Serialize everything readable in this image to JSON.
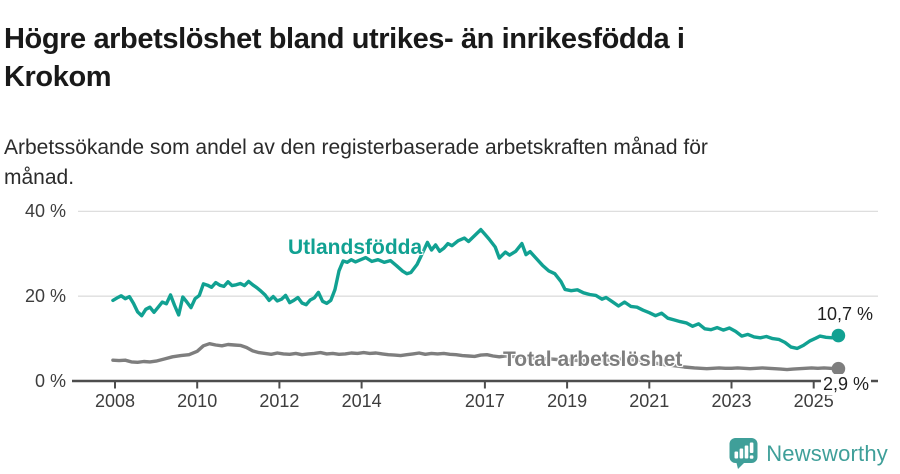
{
  "header": {
    "title_lines": [
      "Högre arbetslöshet bland utrikes- än inrikesfödda i",
      "Krokom"
    ],
    "subtitle_lines": [
      "Arbetssökande som andel av den registerbaserade arbetskraften månad för",
      "månad."
    ]
  },
  "footer": {
    "brand": "Newsworthy",
    "logo_icon": "bar-chart-speech-bubble-icon",
    "brand_color": "#3f9f99"
  },
  "colors": {
    "utlandsfodda": "#11a192",
    "total": "#7e7e7e",
    "axis": "#4d4d4d",
    "grid": "#dedede",
    "tick_text": "#3d3d3d",
    "value_text": "#1f1f1f"
  },
  "chart_data": {
    "type": "line",
    "title": "Högre arbetslöshet bland utrikes- än inrikesfödda i Krokom",
    "subtitle": "Arbetssökande som andel av den registerbaserade arbetskraften månad för månad.",
    "xlabel": "",
    "ylabel": "%",
    "ylim": [
      0,
      40
    ],
    "grid": "horizontal",
    "legend_position": "inline-labels",
    "yticks": [
      {
        "value": 0,
        "label": "0 %"
      },
      {
        "value": 20,
        "label": "20 %"
      },
      {
        "value": 40,
        "label": "40 %"
      }
    ],
    "xticks": [
      {
        "value": 2008,
        "label": "2008"
      },
      {
        "value": 2010,
        "label": "2010"
      },
      {
        "value": 2012,
        "label": "2012"
      },
      {
        "value": 2014,
        "label": "2014"
      },
      {
        "value": 2017,
        "label": "2017"
      },
      {
        "value": 2019,
        "label": "2019"
      },
      {
        "value": 2021,
        "label": "2021"
      },
      {
        "value": 2023,
        "label": "2023"
      },
      {
        "value": 2025,
        "label": "2025"
      }
    ],
    "series": [
      {
        "name": "Utlandsfödda",
        "color": "#11a192",
        "end_label": "10,7 %",
        "end_value": 10.7,
        "points": [
          [
            2007.95,
            19.0
          ],
          [
            2008.05,
            19.6
          ],
          [
            2008.15,
            20.1
          ],
          [
            2008.25,
            19.4
          ],
          [
            2008.35,
            19.9
          ],
          [
            2008.45,
            18.3
          ],
          [
            2008.55,
            16.3
          ],
          [
            2008.65,
            15.4
          ],
          [
            2008.75,
            16.9
          ],
          [
            2008.85,
            17.4
          ],
          [
            2008.95,
            16.2
          ],
          [
            2009.05,
            17.4
          ],
          [
            2009.15,
            18.6
          ],
          [
            2009.25,
            18.2
          ],
          [
            2009.35,
            20.3
          ],
          [
            2009.45,
            17.8
          ],
          [
            2009.55,
            15.6
          ],
          [
            2009.65,
            19.8
          ],
          [
            2009.75,
            18.6
          ],
          [
            2009.85,
            17.3
          ],
          [
            2009.95,
            19.4
          ],
          [
            2010.05,
            20.2
          ],
          [
            2010.15,
            22.9
          ],
          [
            2010.25,
            22.6
          ],
          [
            2010.35,
            22.1
          ],
          [
            2010.45,
            23.2
          ],
          [
            2010.55,
            22.6
          ],
          [
            2010.65,
            22.3
          ],
          [
            2010.75,
            23.4
          ],
          [
            2010.85,
            22.5
          ],
          [
            2010.95,
            22.7
          ],
          [
            2011.05,
            23.0
          ],
          [
            2011.15,
            22.5
          ],
          [
            2011.25,
            23.5
          ],
          [
            2011.35,
            22.7
          ],
          [
            2011.45,
            22.0
          ],
          [
            2011.55,
            21.2
          ],
          [
            2011.65,
            20.3
          ],
          [
            2011.75,
            19.0
          ],
          [
            2011.85,
            19.9
          ],
          [
            2011.95,
            18.9
          ],
          [
            2012.05,
            19.3
          ],
          [
            2012.15,
            20.2
          ],
          [
            2012.25,
            18.5
          ],
          [
            2012.35,
            19.0
          ],
          [
            2012.45,
            19.7
          ],
          [
            2012.55,
            18.4
          ],
          [
            2012.65,
            18.0
          ],
          [
            2012.75,
            19.1
          ],
          [
            2012.85,
            19.6
          ],
          [
            2012.95,
            20.9
          ],
          [
            2013.05,
            18.8
          ],
          [
            2013.15,
            18.3
          ],
          [
            2013.25,
            19.0
          ],
          [
            2013.35,
            21.5
          ],
          [
            2013.45,
            26.0
          ],
          [
            2013.55,
            28.3
          ],
          [
            2013.65,
            28.0
          ],
          [
            2013.75,
            28.6
          ],
          [
            2013.85,
            28.1
          ],
          [
            2013.95,
            28.5
          ],
          [
            2014.1,
            29.1
          ],
          [
            2014.25,
            28.2
          ],
          [
            2014.4,
            28.6
          ],
          [
            2014.55,
            28.0
          ],
          [
            2014.7,
            28.4
          ],
          [
            2014.85,
            27.2
          ],
          [
            2015.0,
            25.9
          ],
          [
            2015.1,
            25.3
          ],
          [
            2015.2,
            25.6
          ],
          [
            2015.35,
            27.5
          ],
          [
            2015.5,
            30.6
          ],
          [
            2015.6,
            32.7
          ],
          [
            2015.7,
            30.9
          ],
          [
            2015.8,
            32.1
          ],
          [
            2015.9,
            30.6
          ],
          [
            2016.0,
            31.3
          ],
          [
            2016.1,
            32.4
          ],
          [
            2016.2,
            31.9
          ],
          [
            2016.35,
            33.1
          ],
          [
            2016.5,
            33.7
          ],
          [
            2016.6,
            32.9
          ],
          [
            2016.75,
            34.3
          ],
          [
            2016.9,
            35.7
          ],
          [
            2017.0,
            34.6
          ],
          [
            2017.1,
            33.5
          ],
          [
            2017.25,
            31.6
          ],
          [
            2017.35,
            29.0
          ],
          [
            2017.5,
            30.4
          ],
          [
            2017.6,
            29.7
          ],
          [
            2017.75,
            30.6
          ],
          [
            2017.9,
            32.4
          ],
          [
            2018.0,
            29.8
          ],
          [
            2018.1,
            30.5
          ],
          [
            2018.25,
            28.9
          ],
          [
            2018.4,
            27.3
          ],
          [
            2018.55,
            26.0
          ],
          [
            2018.7,
            25.3
          ],
          [
            2018.85,
            23.5
          ],
          [
            2018.95,
            21.6
          ],
          [
            2019.1,
            21.3
          ],
          [
            2019.25,
            21.5
          ],
          [
            2019.4,
            20.8
          ],
          [
            2019.55,
            20.4
          ],
          [
            2019.7,
            20.2
          ],
          [
            2019.85,
            19.3
          ],
          [
            2019.95,
            19.7
          ],
          [
            2020.1,
            18.7
          ],
          [
            2020.25,
            17.7
          ],
          [
            2020.4,
            18.6
          ],
          [
            2020.55,
            17.6
          ],
          [
            2020.7,
            17.4
          ],
          [
            2020.85,
            16.7
          ],
          [
            2021.0,
            16.1
          ],
          [
            2021.15,
            15.4
          ],
          [
            2021.3,
            16.0
          ],
          [
            2021.45,
            14.8
          ],
          [
            2021.6,
            14.4
          ],
          [
            2021.75,
            14.0
          ],
          [
            2021.9,
            13.7
          ],
          [
            2022.05,
            12.9
          ],
          [
            2022.2,
            13.5
          ],
          [
            2022.35,
            12.3
          ],
          [
            2022.5,
            12.1
          ],
          [
            2022.65,
            12.6
          ],
          [
            2022.8,
            12.0
          ],
          [
            2022.95,
            12.5
          ],
          [
            2023.1,
            11.7
          ],
          [
            2023.25,
            10.6
          ],
          [
            2023.4,
            11.0
          ],
          [
            2023.55,
            10.4
          ],
          [
            2023.7,
            10.2
          ],
          [
            2023.85,
            10.5
          ],
          [
            2024.0,
            10.0
          ],
          [
            2024.15,
            9.8
          ],
          [
            2024.3,
            9.1
          ],
          [
            2024.45,
            8.0
          ],
          [
            2024.6,
            7.7
          ],
          [
            2024.75,
            8.4
          ],
          [
            2024.9,
            9.4
          ],
          [
            2025.05,
            10.1
          ],
          [
            2025.15,
            10.6
          ],
          [
            2025.3,
            10.3
          ],
          [
            2025.45,
            10.2
          ],
          [
            2025.6,
            10.7
          ]
        ]
      },
      {
        "name": "Total arbetslöshet",
        "color": "#7e7e7e",
        "end_label": "2,9 %",
        "end_value": 2.9,
        "points": [
          [
            2007.95,
            4.9
          ],
          [
            2008.1,
            4.8
          ],
          [
            2008.25,
            4.9
          ],
          [
            2008.4,
            4.5
          ],
          [
            2008.55,
            4.4
          ],
          [
            2008.7,
            4.6
          ],
          [
            2008.85,
            4.5
          ],
          [
            2009.0,
            4.7
          ],
          [
            2009.2,
            5.2
          ],
          [
            2009.4,
            5.7
          ],
          [
            2009.6,
            6.0
          ],
          [
            2009.8,
            6.2
          ],
          [
            2010.0,
            7.0
          ],
          [
            2010.15,
            8.3
          ],
          [
            2010.3,
            8.8
          ],
          [
            2010.45,
            8.5
          ],
          [
            2010.6,
            8.3
          ],
          [
            2010.75,
            8.6
          ],
          [
            2010.9,
            8.5
          ],
          [
            2011.05,
            8.4
          ],
          [
            2011.2,
            7.9
          ],
          [
            2011.35,
            7.1
          ],
          [
            2011.5,
            6.7
          ],
          [
            2011.65,
            6.5
          ],
          [
            2011.8,
            6.3
          ],
          [
            2011.95,
            6.6
          ],
          [
            2012.1,
            6.4
          ],
          [
            2012.25,
            6.3
          ],
          [
            2012.4,
            6.5
          ],
          [
            2012.55,
            6.2
          ],
          [
            2012.7,
            6.4
          ],
          [
            2012.85,
            6.5
          ],
          [
            2013.0,
            6.7
          ],
          [
            2013.15,
            6.4
          ],
          [
            2013.3,
            6.5
          ],
          [
            2013.45,
            6.3
          ],
          [
            2013.6,
            6.4
          ],
          [
            2013.75,
            6.6
          ],
          [
            2013.9,
            6.5
          ],
          [
            2014.05,
            6.7
          ],
          [
            2014.2,
            6.5
          ],
          [
            2014.35,
            6.6
          ],
          [
            2014.5,
            6.4
          ],
          [
            2014.65,
            6.2
          ],
          [
            2014.8,
            6.1
          ],
          [
            2014.95,
            6.0
          ],
          [
            2015.1,
            6.2
          ],
          [
            2015.25,
            6.4
          ],
          [
            2015.4,
            6.6
          ],
          [
            2015.55,
            6.3
          ],
          [
            2015.7,
            6.5
          ],
          [
            2015.85,
            6.4
          ],
          [
            2016.0,
            6.5
          ],
          [
            2016.15,
            6.3
          ],
          [
            2016.3,
            6.2
          ],
          [
            2016.45,
            6.0
          ],
          [
            2016.6,
            5.9
          ],
          [
            2016.75,
            5.8
          ],
          [
            2016.9,
            6.1
          ],
          [
            2017.05,
            6.2
          ],
          [
            2017.2,
            5.9
          ],
          [
            2017.35,
            5.7
          ],
          [
            2017.5,
            5.9
          ],
          [
            2017.7,
            5.8
          ],
          [
            2017.9,
            5.6
          ],
          [
            2018.1,
            5.5
          ],
          [
            2018.35,
            5.3
          ],
          [
            2018.6,
            5.2
          ],
          [
            2018.85,
            5.0
          ],
          [
            2019.1,
            4.9
          ],
          [
            2019.35,
            4.8
          ],
          [
            2019.6,
            4.7
          ],
          [
            2019.85,
            4.8
          ],
          [
            2020.1,
            5.0
          ],
          [
            2020.35,
            5.2
          ],
          [
            2020.6,
            5.0
          ],
          [
            2020.85,
            4.7
          ],
          [
            2021.1,
            4.3
          ],
          [
            2021.35,
            3.9
          ],
          [
            2021.6,
            3.6
          ],
          [
            2021.85,
            3.3
          ],
          [
            2022.1,
            3.1
          ],
          [
            2022.25,
            3.0
          ],
          [
            2022.4,
            2.9
          ],
          [
            2022.55,
            3.0
          ],
          [
            2022.7,
            3.1
          ],
          [
            2022.85,
            3.0
          ],
          [
            2023.0,
            3.0
          ],
          [
            2023.15,
            3.1
          ],
          [
            2023.3,
            3.0
          ],
          [
            2023.45,
            2.9
          ],
          [
            2023.6,
            3.0
          ],
          [
            2023.75,
            3.1
          ],
          [
            2023.9,
            3.0
          ],
          [
            2024.05,
            2.9
          ],
          [
            2024.2,
            2.8
          ],
          [
            2024.35,
            2.7
          ],
          [
            2024.5,
            2.8
          ],
          [
            2024.65,
            2.9
          ],
          [
            2024.8,
            3.0
          ],
          [
            2024.95,
            3.1
          ],
          [
            2025.1,
            3.0
          ],
          [
            2025.25,
            3.1
          ],
          [
            2025.4,
            3.0
          ],
          [
            2025.6,
            2.9
          ]
        ]
      }
    ]
  }
}
